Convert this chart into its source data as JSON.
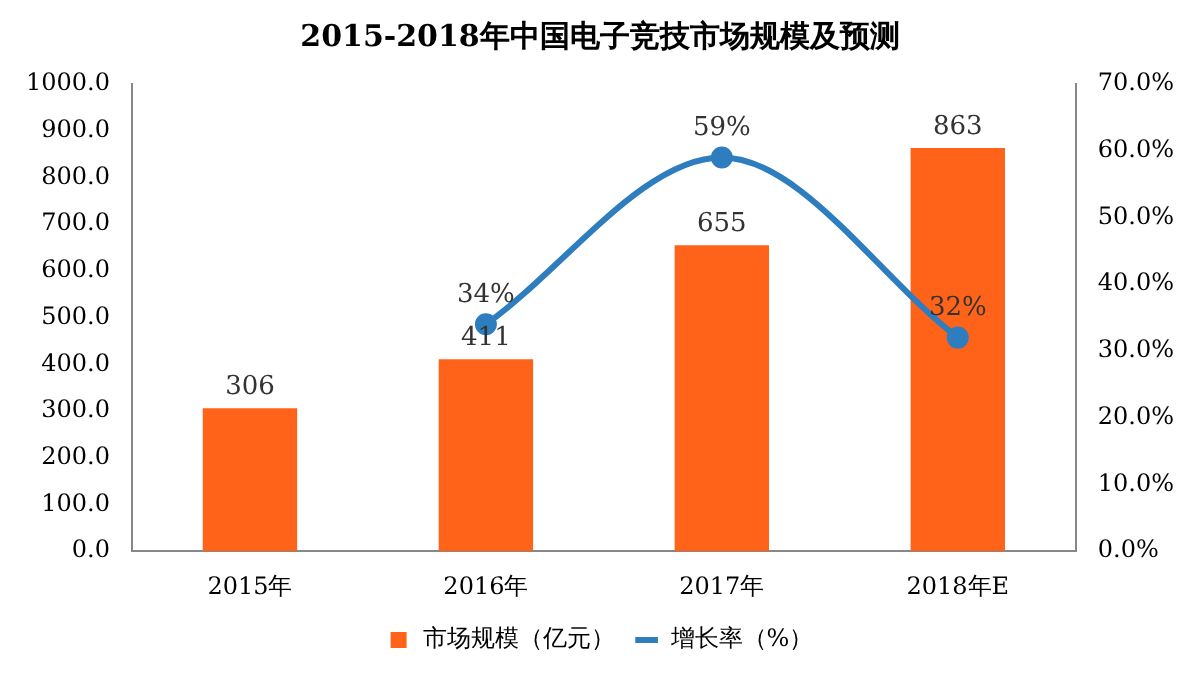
{
  "chart_data": {
    "type": "bar",
    "title": "2015-2018年中国电子竞技市场规模及预测",
    "categories": [
      "2015年",
      "2016年",
      "2017年",
      "2018年E"
    ],
    "series": [
      {
        "name": "市场规模（亿元）",
        "color": "#ff6319",
        "values": [
          306,
          411,
          655,
          863
        ],
        "value_labels": [
          "306",
          "411",
          "655",
          "863"
        ]
      },
      {
        "name": "增长率（%）",
        "type": "line",
        "axis": "y2",
        "color": "#2e7dbf",
        "values": [
          null,
          34,
          59,
          32
        ],
        "value_labels": [
          null,
          "34%",
          "59%",
          "32%"
        ]
      }
    ],
    "ylim": [
      0,
      1000
    ],
    "yticks": [
      {
        "value": 0,
        "label": "0.0"
      },
      {
        "value": 100,
        "label": "100.0"
      },
      {
        "value": 200,
        "label": "200.0"
      },
      {
        "value": 300,
        "label": "300.0"
      },
      {
        "value": 400,
        "label": "400.0"
      },
      {
        "value": 500,
        "label": "500.0"
      },
      {
        "value": 600,
        "label": "600.0"
      },
      {
        "value": 700,
        "label": "700.0"
      },
      {
        "value": 800,
        "label": "800.0"
      },
      {
        "value": 900,
        "label": "900.0"
      },
      {
        "value": 1000,
        "label": "1000.0"
      }
    ],
    "y2lim": [
      0,
      70
    ],
    "y2ticks": [
      {
        "value": 0,
        "label": "0.0%"
      },
      {
        "value": 10,
        "label": "10.0%"
      },
      {
        "value": 20,
        "label": "20.0%"
      },
      {
        "value": 30,
        "label": "30.0%"
      },
      {
        "value": 40,
        "label": "40.0%"
      },
      {
        "value": 50,
        "label": "50.0%"
      },
      {
        "value": 60,
        "label": "60.0%"
      },
      {
        "value": 70,
        "label": "70.0%"
      }
    ],
    "grid": false,
    "legend": "bottom",
    "marker": "circle"
  }
}
